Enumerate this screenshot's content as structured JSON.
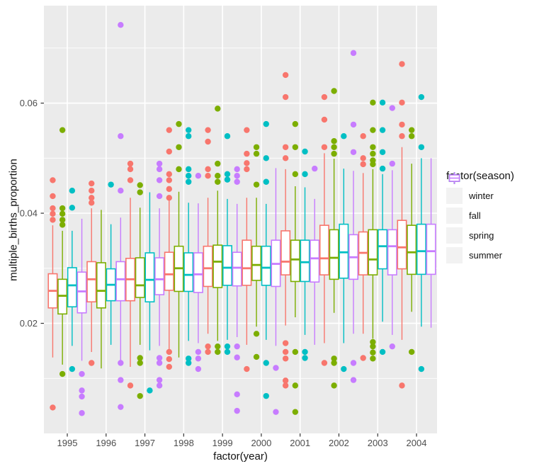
{
  "figure": {
    "background": "#FFFFFF",
    "panel_background": "#EBEBEB",
    "grid_major_color": "#FFFFFF",
    "grid_minor_color": "#F5F5F5",
    "tick_mark_color": "#333333",
    "axis_text_color": "#4D4D4D",
    "axis_title_color": "#111111",
    "legend_key_background": "#F2F2F2"
  },
  "chart_data": {
    "type": "boxplot",
    "title": "",
    "xlabel": "factor(year)",
    "ylabel": "multiple_births_proportion",
    "legend_title": "factor(season)",
    "legend_position": "right",
    "grid": true,
    "categories": [
      "1995",
      "1996",
      "1997",
      "1998",
      "1999",
      "2000",
      "2001",
      "2002",
      "2003",
      "2004"
    ],
    "seasons": [
      {
        "name": "winter",
        "color": "#F8766D"
      },
      {
        "name": "fall",
        "color": "#7CAE00"
      },
      {
        "name": "spring",
        "color": "#00BFC4"
      },
      {
        "name": "summer",
        "color": "#C77CFF"
      }
    ],
    "y_axis": {
      "ticks": [
        0.02,
        0.04,
        0.06
      ],
      "tick_labels": [
        "0.02",
        "0.04",
        "0.06"
      ],
      "minor": [
        0.01,
        0.03,
        0.05,
        0.07
      ],
      "range": [
        0.0,
        0.0777
      ]
    },
    "boxes": {
      "1995": {
        "winter": {
          "w": [
            0.0138,
            0.0228,
            0.0259,
            0.029,
            0.0378
          ],
          "out_hi": [
            0.046,
            0.0431,
            0.0409,
            0.0399,
            0.0388
          ],
          "out_lo": [
            0.0047
          ]
        },
        "fall": {
          "w": [
            0.0125,
            0.0217,
            0.025,
            0.028,
            0.0368
          ],
          "out_hi": [
            0.0551,
            0.0409,
            0.0399,
            0.0388,
            0.0379
          ],
          "out_lo": [
            0.0108
          ]
        },
        "spring": {
          "w": [
            0.0159,
            0.023,
            0.0269,
            0.0301,
            0.0368
          ],
          "out_hi": [
            0.0441,
            0.041
          ],
          "out_lo": [
            0.0117
          ]
        },
        "summer": {
          "w": [
            0.0132,
            0.0219,
            0.0258,
            0.0293,
            0.039
          ],
          "out_hi": [],
          "out_lo": [
            0.0108,
            0.0078,
            0.0067,
            0.0037
          ]
        }
      },
      "1996": {
        "winter": {
          "w": [
            0.0148,
            0.0239,
            0.028,
            0.0312,
            0.0409
          ],
          "out_hi": [
            0.0454,
            0.0441,
            0.0428,
            0.0419
          ],
          "out_lo": [
            0.0128
          ]
        },
        "fall": {
          "w": [
            0.0118,
            0.0228,
            0.0259,
            0.031,
            0.0406
          ],
          "out_hi": [],
          "out_lo": []
        },
        "spring": {
          "w": [
            0.0161,
            0.0241,
            0.027,
            0.0299,
            0.038
          ],
          "out_hi": [
            0.0452
          ],
          "out_lo": []
        },
        "summer": {
          "w": [
            0.0131,
            0.0241,
            0.028,
            0.0312,
            0.0392
          ],
          "out_hi": [
            0.0742,
            0.054,
            0.0441
          ],
          "out_lo": [
            0.0128,
            0.0097,
            0.0048
          ]
        }
      },
      "1997": {
        "winter": {
          "w": [
            0.0121,
            0.0241,
            0.028,
            0.0318,
            0.0428
          ],
          "out_hi": [
            0.049,
            0.048,
            0.046
          ],
          "out_lo": [
            0.0087
          ]
        },
        "fall": {
          "w": [
            0.0161,
            0.0247,
            0.0269,
            0.0319,
            0.041
          ],
          "out_hi": [
            0.0451,
            0.0438
          ],
          "out_lo": [
            0.0137,
            0.0128,
            0.0068
          ]
        },
        "spring": {
          "w": [
            0.0151,
            0.0239,
            0.0279,
            0.0328,
            0.0438
          ],
          "out_hi": [],
          "out_lo": [
            0.0078
          ]
        },
        "summer": {
          "w": [
            0.0159,
            0.0252,
            0.028,
            0.0319,
            0.0409
          ],
          "out_hi": [
            0.049,
            0.048,
            0.046,
            0.0431
          ],
          "out_lo": [
            0.0137,
            0.0128,
            0.0097,
            0.0087
          ]
        }
      },
      "1998": {
        "winter": {
          "w": [
            0.0152,
            0.026,
            0.0289,
            0.0329,
            0.0426
          ],
          "out_hi": [
            0.0551,
            0.0512,
            0.0471,
            0.046,
            0.0444,
            0.0428
          ],
          "out_lo": [
            0.0148,
            0.0135,
            0.0121
          ]
        },
        "fall": {
          "w": [
            0.0138,
            0.0258,
            0.03,
            0.034,
            0.0439
          ],
          "out_hi": [
            0.0562,
            0.052,
            0.048
          ],
          "out_lo": []
        },
        "spring": {
          "w": [
            0.0168,
            0.0258,
            0.0288,
            0.0328,
            0.0419
          ],
          "out_hi": [
            0.0551,
            0.054,
            0.048,
            0.0468,
            0.0457
          ],
          "out_lo": [
            0.0136,
            0.0128
          ]
        },
        "summer": {
          "w": [
            0.0164,
            0.0256,
            0.0289,
            0.0328,
            0.0418
          ],
          "out_hi": [
            0.0468
          ],
          "out_lo": [
            0.0148,
            0.0136,
            0.0117
          ]
        }
      },
      "1999": {
        "winter": {
          "w": [
            0.0181,
            0.0267,
            0.03,
            0.034,
            0.0428
          ],
          "out_hi": [
            0.0551,
            0.053,
            0.048,
            0.0468
          ],
          "out_lo": [
            0.0158,
            0.0148
          ]
        },
        "fall": {
          "w": [
            0.0168,
            0.0265,
            0.0312,
            0.0342,
            0.0441
          ],
          "out_hi": [
            0.059,
            0.049,
            0.0468,
            0.0457
          ],
          "out_lo": [
            0.0158,
            0.0148
          ]
        },
        "spring": {
          "w": [
            0.017,
            0.0269,
            0.0301,
            0.0341,
            0.0426
          ],
          "out_hi": [
            0.054,
            0.0471,
            0.0461
          ],
          "out_lo": [
            0.0158,
            0.0148
          ]
        },
        "summer": {
          "w": [
            0.0175,
            0.0268,
            0.0301,
            0.0329,
            0.0417
          ],
          "out_hi": [
            0.048,
            0.0468,
            0.0457
          ],
          "out_lo": [
            0.0158,
            0.0138,
            0.0071,
            0.0041
          ]
        }
      },
      "2000": {
        "winter": {
          "w": [
            0.0161,
            0.0269,
            0.03,
            0.0351,
            0.0428
          ],
          "out_hi": [
            0.0551,
            0.0508,
            0.0491,
            0.048
          ],
          "out_lo": [
            0.0117
          ]
        },
        "fall": {
          "w": [
            0.0194,
            0.0278,
            0.0306,
            0.034,
            0.0428
          ],
          "out_hi": [
            0.052,
            0.0508,
            0.0452
          ],
          "out_lo": [
            0.0181,
            0.0139
          ]
        },
        "spring": {
          "w": [
            0.017,
            0.0269,
            0.0301,
            0.034,
            0.0417
          ],
          "out_hi": [
            0.0562,
            0.05,
            0.0457
          ],
          "out_lo": [
            0.0128,
            0.0068
          ]
        },
        "summer": {
          "w": [
            0.0159,
            0.0267,
            0.0308,
            0.0351,
            0.0482
          ],
          "out_hi": [],
          "out_lo": [
            0.0119,
            0.0039
          ]
        }
      },
      "2001": {
        "winter": {
          "w": [
            0.0196,
            0.0288,
            0.0312,
            0.0368,
            0.048
          ],
          "out_hi": [
            0.0651,
            0.0611,
            0.052,
            0.05
          ],
          "out_lo": [
            0.0164,
            0.0148,
            0.0136,
            0.0096,
            0.0087
          ]
        },
        "fall": {
          "w": [
            0.0211,
            0.0276,
            0.0316,
            0.0351,
            0.0449
          ],
          "out_hi": [
            0.0562,
            0.052,
            0.0471
          ],
          "out_lo": [
            0.0148,
            0.0087,
            0.0039
          ]
        },
        "spring": {
          "w": [
            0.0179,
            0.0276,
            0.0311,
            0.0351,
            0.0447
          ],
          "out_hi": [
            0.0512,
            0.0471
          ],
          "out_lo": [
            0.0148,
            0.0137
          ]
        },
        "summer": {
          "w": [
            0.0161,
            0.0275,
            0.0318,
            0.0351,
            0.0426
          ],
          "out_hi": [
            0.0481
          ],
          "out_lo": []
        }
      },
      "2002": {
        "winter": {
          "w": [
            0.0164,
            0.0288,
            0.0318,
            0.0378,
            0.0509
          ],
          "out_hi": [
            0.0611,
            0.057,
            0.052
          ],
          "out_lo": [
            0.0128
          ]
        },
        "fall": {
          "w": [
            0.0219,
            0.028,
            0.0319,
            0.037,
            0.0499
          ],
          "out_hi": [
            0.0622,
            0.0531,
            0.052,
            0.0508
          ],
          "out_lo": [
            0.0136,
            0.0128,
            0.0087
          ]
        },
        "spring": {
          "w": [
            0.0164,
            0.0282,
            0.0329,
            0.038,
            0.0481
          ],
          "out_hi": [
            0.054
          ],
          "out_lo": [
            0.0117
          ]
        },
        "summer": {
          "w": [
            0.0181,
            0.028,
            0.032,
            0.0361,
            0.0477
          ],
          "out_hi": [
            0.0691,
            0.0561,
            0.0511
          ],
          "out_lo": [
            0.0128,
            0.0097
          ]
        }
      },
      "2003": {
        "winter": {
          "w": [
            0.0181,
            0.0288,
            0.0328,
            0.0366,
            0.0473
          ],
          "out_hi": [
            0.054,
            0.05,
            0.0489
          ],
          "out_lo": [
            0.0137
          ]
        },
        "fall": {
          "w": [
            0.0172,
            0.0288,
            0.0316,
            0.037,
            0.048
          ],
          "out_hi": [
            0.0601,
            0.0551,
            0.052,
            0.0508,
            0.0496,
            0.0489
          ],
          "out_lo": [
            0.0166,
            0.0158,
            0.0147,
            0.0136
          ]
        },
        "spring": {
          "w": [
            0.0203,
            0.0299,
            0.034,
            0.037,
            0.0471
          ],
          "out_hi": [
            0.0601,
            0.0551,
            0.0511,
            0.0481
          ],
          "out_lo": [
            0.0148
          ]
        },
        "summer": {
          "w": [
            0.0179,
            0.0288,
            0.034,
            0.037,
            0.0478
          ],
          "out_hi": [
            0.0591,
            0.049
          ],
          "out_lo": [
            0.0158
          ]
        }
      },
      "2004": {
        "winter": {
          "w": [
            0.017,
            0.0299,
            0.0338,
            0.0387,
            0.052
          ],
          "out_hi": [
            0.0671,
            0.0601,
            0.0561,
            0.054
          ],
          "out_lo": [
            0.0087
          ]
        },
        "fall": {
          "w": [
            0.0221,
            0.0289,
            0.0329,
            0.0378,
            0.049
          ],
          "out_hi": [
            0.0551,
            0.054
          ],
          "out_lo": [
            0.0148
          ]
        },
        "spring": {
          "w": [
            0.0194,
            0.0289,
            0.0331,
            0.038,
            0.05
          ],
          "out_hi": [
            0.0611,
            0.052
          ],
          "out_lo": [
            0.0117
          ]
        },
        "summer": {
          "w": [
            0.0192,
            0.0289,
            0.0331,
            0.038,
            0.05
          ],
          "out_hi": [],
          "out_lo": []
        }
      }
    }
  }
}
